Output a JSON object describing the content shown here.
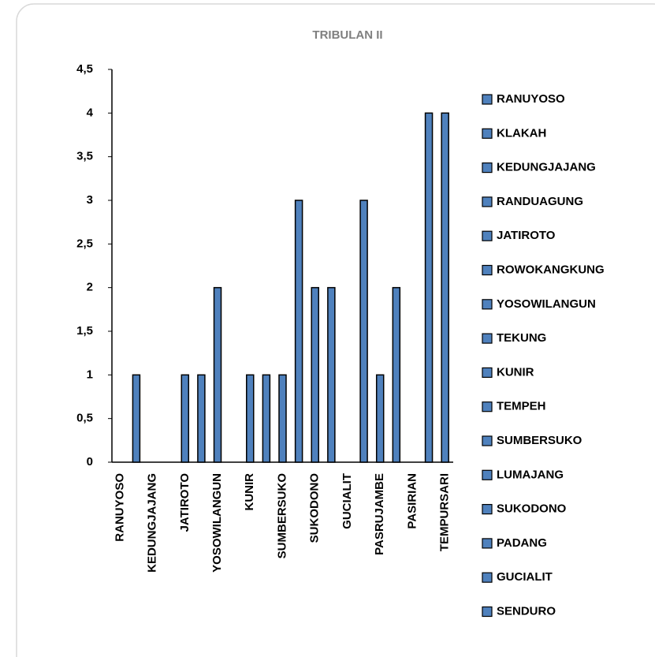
{
  "chart_data": {
    "type": "bar",
    "title": "TRIBULAN II",
    "categories": [
      "RANUYOSO",
      "KLAKAH",
      "KEDUNGJAJANG",
      "RANDUAGUNG",
      "JATIROTO",
      "ROWOKANGKUNG",
      "YOSOWILANGUN",
      "TEKUNG",
      "KUNIR",
      "TEMPEH",
      "SUMBERSUKO",
      "LUMAJANG",
      "SUKODONO",
      "PADANG",
      "GUCIALIT",
      "SENDURO",
      "PASRUJAMBE",
      null,
      "PASIRIAN",
      null,
      "TEMPURSARI"
    ],
    "values": [
      0,
      1,
      0,
      0,
      1,
      1,
      2,
      0,
      1,
      1,
      1,
      3,
      2,
      2,
      0,
      3,
      1,
      2,
      0,
      4,
      4
    ],
    "color": "#4f81bd",
    "ylim": [
      0,
      4.5
    ],
    "yticks": [
      0,
      {
        "value": 0.5,
        "label": "0,5"
      },
      1,
      {
        "value": 1.5,
        "label": "1,5"
      },
      2,
      {
        "value": 2.5,
        "label": "2,5"
      },
      3,
      {
        "value": 3.5,
        "label": "3,5"
      },
      4,
      {
        "value": 4.5,
        "label": "4,5"
      }
    ],
    "grid": false
  }
}
